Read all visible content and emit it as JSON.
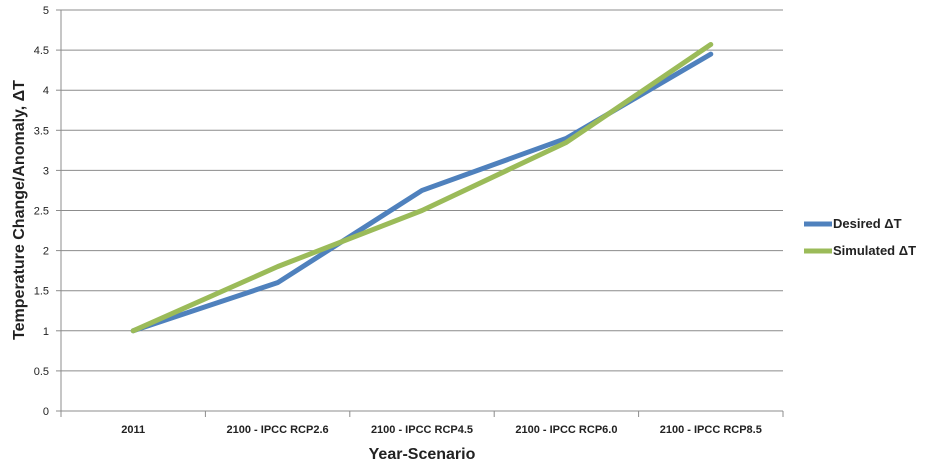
{
  "chart_data": {
    "type": "line",
    "categories": [
      "2011",
      "2100 - IPCC RCP2.6",
      "2100 - IPCC RCP4.5",
      "2100 - IPCC RCP6.0",
      "2100 - IPCC RCP8.5"
    ],
    "series": [
      {
        "name": "Desired ΔT",
        "values": [
          1.0,
          1.6,
          2.75,
          3.4,
          4.45
        ],
        "color": "#4f81bd"
      },
      {
        "name": "Simulated ΔT",
        "values": [
          1.0,
          1.8,
          2.5,
          3.35,
          4.57
        ],
        "color": "#9bbb59"
      }
    ],
    "xlabel": "Year-Scenario",
    "ylabel": "Temperature Change/Anomaly, ΔT",
    "ylim": [
      0,
      5
    ],
    "y_ticks": [
      "0",
      "0.5",
      "1",
      "1.5",
      "2",
      "2.5",
      "3",
      "3.5",
      "4",
      "4.5",
      "5"
    ],
    "grid": true,
    "legend_position": "right"
  }
}
